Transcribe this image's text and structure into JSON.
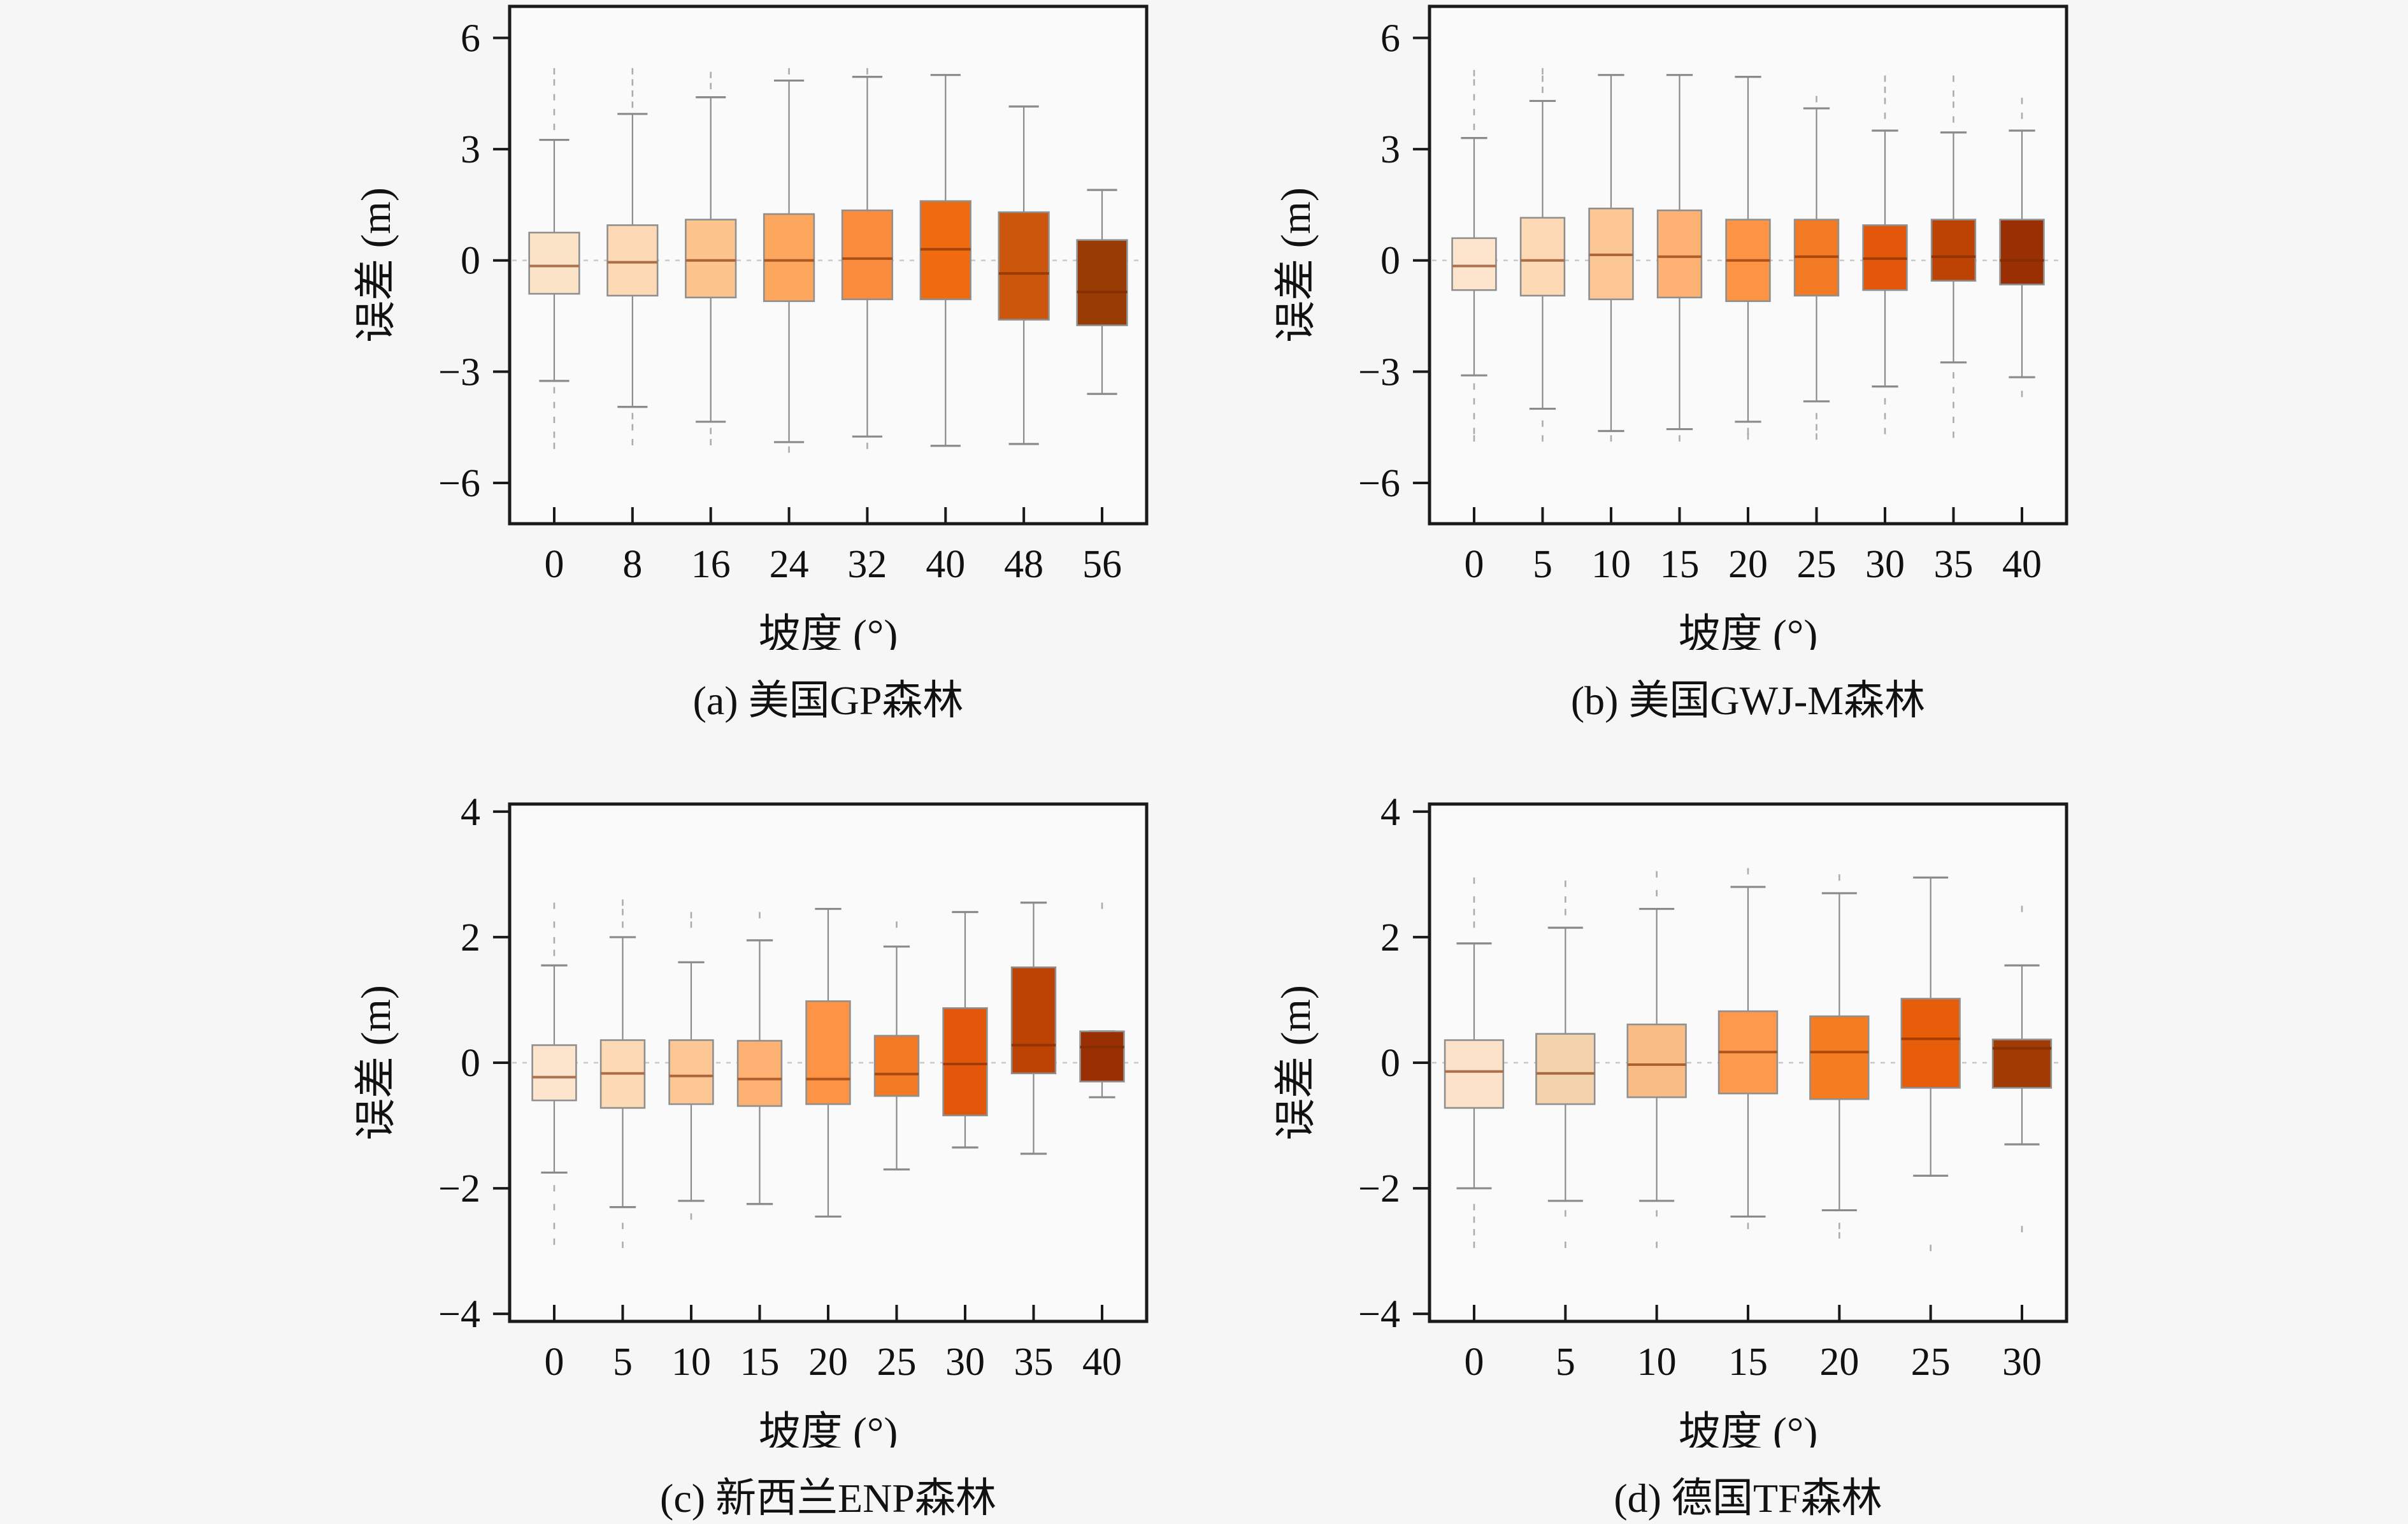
{
  "page": {
    "background": "#f6f6f7"
  },
  "styles": {
    "plot_bg": "#fafafa",
    "spine": "#1a1a1a",
    "box_border": "#8f8f8f",
    "whisker": "#8a8a8a",
    "median_dark": "#7a2a00",
    "zero_line": "#c8c8c8",
    "outlier": "#9e9e9e",
    "text": "#111111"
  },
  "chart_data": [
    {
      "id": "a",
      "type": "boxplot",
      "title": "(a) 美国GP森林",
      "xlabel": "坡度 (°)",
      "ylabel": "误差 (m)",
      "ylim": [
        -7.1,
        6.85
      ],
      "yticks": [
        6,
        3,
        0,
        -3,
        -6
      ],
      "ytick_labels": [
        "6",
        "3",
        "0",
        "−3",
        "−6"
      ],
      "categories": [
        "0",
        "8",
        "16",
        "24",
        "32",
        "40",
        "48",
        "56"
      ],
      "boxes": [
        {
          "slope": "0",
          "whislo": -3.25,
          "q1": -0.9,
          "med": -0.15,
          "q3": 0.75,
          "whishi": 3.25,
          "outliers": [
            3.6,
            4.0,
            4.4,
            4.8,
            5.1,
            -3.5,
            -3.9,
            -4.3,
            -4.7,
            -5.0
          ],
          "color": "#fbe3c8"
        },
        {
          "slope": "8",
          "whislo": -3.95,
          "q1": -0.95,
          "med": -0.05,
          "q3": 0.95,
          "whishi": 3.95,
          "outliers": [
            4.2,
            4.5,
            4.8,
            5.1,
            -4.2,
            -4.5,
            -4.9
          ],
          "color": "#fdd9b6"
        },
        {
          "slope": "16",
          "whislo": -4.35,
          "q1": -1.0,
          "med": 0.0,
          "q3": 1.1,
          "whishi": 4.4,
          "outliers": [
            4.7,
            5.0,
            -4.6,
            -4.9
          ],
          "color": "#fdc48e"
        },
        {
          "slope": "24",
          "whislo": -4.9,
          "q1": -1.1,
          "med": 0.0,
          "q3": 1.25,
          "whishi": 4.85,
          "outliers": [
            5.1,
            -5.1
          ],
          "color": "#fda65e"
        },
        {
          "slope": "32",
          "whislo": -4.75,
          "q1": -1.05,
          "med": 0.05,
          "q3": 1.35,
          "whishi": 4.95,
          "outliers": [
            5.1,
            -5.0
          ],
          "color": "#f98d3d"
        },
        {
          "slope": "40",
          "whislo": -5.0,
          "q1": -1.05,
          "med": 0.3,
          "q3": 1.6,
          "whishi": 5.0,
          "outliers": [],
          "color": "#ee6b10"
        },
        {
          "slope": "48",
          "whislo": -4.95,
          "q1": -1.6,
          "med": -0.35,
          "q3": 1.3,
          "whishi": 4.15,
          "outliers": [],
          "color": "#cc560b"
        },
        {
          "slope": "56",
          "whislo": -3.6,
          "q1": -1.75,
          "med": -0.85,
          "q3": 0.55,
          "whishi": 1.9,
          "outliers": [],
          "color": "#983b05"
        }
      ]
    },
    {
      "id": "b",
      "type": "boxplot",
      "title": "(b) 美国GWJ-M森林",
      "xlabel": "坡度 (°)",
      "ylabel": "误差 (m)",
      "ylim": [
        -7.1,
        6.85
      ],
      "yticks": [
        6,
        3,
        0,
        -3,
        -6
      ],
      "ytick_labels": [
        "6",
        "3",
        "0",
        "−3",
        "−6"
      ],
      "categories": [
        "0",
        "5",
        "10",
        "15",
        "20",
        "25",
        "30",
        "35",
        "40"
      ],
      "boxes": [
        {
          "slope": "0",
          "whislo": -3.1,
          "q1": -0.8,
          "med": -0.15,
          "q3": 0.6,
          "whishi": 3.3,
          "outliers": [
            3.6,
            4.0,
            4.4,
            4.8,
            5.05,
            -3.4,
            -3.8,
            -4.2,
            -4.6,
            -4.8
          ],
          "color": "#fde5cd"
        },
        {
          "slope": "5",
          "whislo": -4.0,
          "q1": -0.95,
          "med": 0.0,
          "q3": 1.15,
          "whishi": 4.3,
          "outliers": [
            4.6,
            4.9,
            5.1,
            -4.4,
            -4.8
          ],
          "color": "#fdd9b6"
        },
        {
          "slope": "10",
          "whislo": -4.6,
          "q1": -1.05,
          "med": 0.15,
          "q3": 1.4,
          "whishi": 5.0,
          "outliers": [
            -4.8
          ],
          "color": "#fdc795"
        },
        {
          "slope": "15",
          "whislo": -4.55,
          "q1": -1.0,
          "med": 0.1,
          "q3": 1.35,
          "whishi": 5.0,
          "outliers": [
            -4.8
          ],
          "color": "#fdb274"
        },
        {
          "slope": "20",
          "whislo": -4.35,
          "q1": -1.1,
          "med": 0.0,
          "q3": 1.1,
          "whishi": 4.95,
          "outliers": [
            -4.6,
            -4.75
          ],
          "color": "#fd9445"
        },
        {
          "slope": "25",
          "whislo": -3.8,
          "q1": -0.95,
          "med": 0.1,
          "q3": 1.1,
          "whishi": 4.1,
          "outliers": [
            4.35,
            -4.2,
            -4.5,
            -4.75
          ],
          "color": "#f37a24"
        },
        {
          "slope": "30",
          "whislo": -3.4,
          "q1": -0.8,
          "med": 0.05,
          "q3": 0.95,
          "whishi": 3.5,
          "outliers": [
            3.9,
            4.3,
            4.6,
            4.9,
            -3.8,
            -4.2,
            -4.6
          ],
          "color": "#e2570a"
        },
        {
          "slope": "35",
          "whislo": -2.75,
          "q1": -0.55,
          "med": 0.1,
          "q3": 1.1,
          "whishi": 3.45,
          "outliers": [
            3.8,
            4.2,
            4.5,
            4.9,
            -3.1,
            -3.5,
            -3.9,
            -4.3,
            -4.7
          ],
          "color": "#bc4304"
        },
        {
          "slope": "40",
          "whislo": -3.15,
          "q1": -0.65,
          "med": 0.0,
          "q3": 1.1,
          "whishi": 3.5,
          "outliers": [
            3.9,
            4.3,
            -3.6
          ],
          "color": "#992f03"
        }
      ]
    },
    {
      "id": "c",
      "type": "boxplot",
      "title": "(c) 新西兰ENP森林",
      "xlabel": "坡度 (°)",
      "ylabel": "误差 (m)",
      "ylim": [
        -4.12,
        4.12
      ],
      "yticks": [
        4,
        2,
        0,
        -2,
        -4
      ],
      "ytick_labels": [
        "4",
        "2",
        "0",
        "−2",
        "−4"
      ],
      "categories": [
        "0",
        "5",
        "10",
        "15",
        "20",
        "25",
        "30",
        "35",
        "40"
      ],
      "boxes": [
        {
          "slope": "0",
          "whislo": -1.75,
          "q1": -0.6,
          "med": -0.23,
          "q3": 0.28,
          "whishi": 1.55,
          "outliers": [
            1.75,
            1.95,
            2.2,
            2.5,
            -2.0,
            -2.3,
            -2.6,
            -2.85
          ],
          "color": "#fde5cd"
        },
        {
          "slope": "5",
          "whislo": -2.3,
          "q1": -0.72,
          "med": -0.17,
          "q3": 0.36,
          "whishi": 2.0,
          "outliers": [
            2.2,
            2.4,
            2.55,
            -2.6,
            -2.9
          ],
          "color": "#fdd9b6"
        },
        {
          "slope": "10",
          "whislo": -2.2,
          "q1": -0.66,
          "med": -0.21,
          "q3": 0.36,
          "whishi": 1.6,
          "outliers": [
            2.2,
            2.35,
            -2.45
          ],
          "color": "#fdc795"
        },
        {
          "slope": "15",
          "whislo": -2.25,
          "q1": -0.69,
          "med": -0.26,
          "q3": 0.35,
          "whishi": 1.95,
          "outliers": [
            2.35
          ],
          "color": "#fdb274"
        },
        {
          "slope": "20",
          "whislo": -2.45,
          "q1": -0.66,
          "med": -0.26,
          "q3": 0.98,
          "whishi": 2.45,
          "outliers": [],
          "color": "#fd9445"
        },
        {
          "slope": "25",
          "whislo": -1.7,
          "q1": -0.53,
          "med": -0.18,
          "q3": 0.43,
          "whishi": 1.85,
          "outliers": [
            2.2
          ],
          "color": "#f37a24"
        },
        {
          "slope": "30",
          "whislo": -1.35,
          "q1": -0.84,
          "med": -0.02,
          "q3": 0.87,
          "whishi": 2.4,
          "outliers": [],
          "color": "#e2570a"
        },
        {
          "slope": "35",
          "whislo": -1.45,
          "q1": -0.17,
          "med": 0.28,
          "q3": 1.52,
          "whishi": 2.55,
          "outliers": [],
          "color": "#bc4304"
        },
        {
          "slope": "40",
          "whislo": -0.55,
          "q1": -0.3,
          "med": 0.25,
          "q3": 0.5,
          "whishi": 0.5,
          "outliers": [
            2.5
          ],
          "color": "#992f03"
        }
      ]
    },
    {
      "id": "d",
      "type": "boxplot",
      "title": "(d) 德国TF森林",
      "xlabel": "坡度 (°)",
      "ylabel": "误差 (m)",
      "ylim": [
        -4.12,
        4.12
      ],
      "yticks": [
        4,
        2,
        0,
        -2,
        -4
      ],
      "ytick_labels": [
        "4",
        "2",
        "0",
        "−2",
        "−4"
      ],
      "categories": [
        "0",
        "5",
        "10",
        "15",
        "20",
        "25",
        "30"
      ],
      "boxes": [
        {
          "slope": "0",
          "whislo": -2.0,
          "q1": -0.72,
          "med": -0.14,
          "q3": 0.36,
          "whishi": 1.9,
          "outliers": [
            2.2,
            2.4,
            2.6,
            2.9,
            -2.3,
            -2.5,
            -2.7,
            -2.9
          ],
          "color": "#fbe2c8"
        },
        {
          "slope": "5",
          "whislo": -2.2,
          "q1": -0.66,
          "med": -0.17,
          "q3": 0.46,
          "whishi": 2.15,
          "outliers": [
            2.4,
            2.6,
            2.85,
            -2.4,
            -2.9
          ],
          "color": "#f3d2ae"
        },
        {
          "slope": "10",
          "whislo": -2.2,
          "q1": -0.55,
          "med": -0.03,
          "q3": 0.61,
          "whishi": 2.45,
          "outliers": [
            2.7,
            3.0,
            -2.4,
            -2.9
          ],
          "color": "#f9bc84"
        },
        {
          "slope": "15",
          "whislo": -2.45,
          "q1": -0.49,
          "med": 0.17,
          "q3": 0.82,
          "whishi": 2.8,
          "outliers": [
            3.05,
            -2.6
          ],
          "color": "#fd9a4e"
        },
        {
          "slope": "20",
          "whislo": -2.35,
          "q1": -0.58,
          "med": 0.17,
          "q3": 0.74,
          "whishi": 2.7,
          "outliers": [
            2.95,
            -2.6,
            -2.75
          ],
          "color": "#f67c22"
        },
        {
          "slope": "25",
          "whislo": -1.8,
          "q1": -0.4,
          "med": 0.38,
          "q3": 1.02,
          "whishi": 2.95,
          "outliers": [
            -2.95
          ],
          "color": "#e85d0a"
        },
        {
          "slope": "30",
          "whislo": -1.3,
          "q1": -0.4,
          "med": 0.23,
          "q3": 0.37,
          "whishi": 1.55,
          "outliers": [
            2.45,
            -2.65
          ],
          "color": "#a13b04"
        }
      ]
    }
  ]
}
